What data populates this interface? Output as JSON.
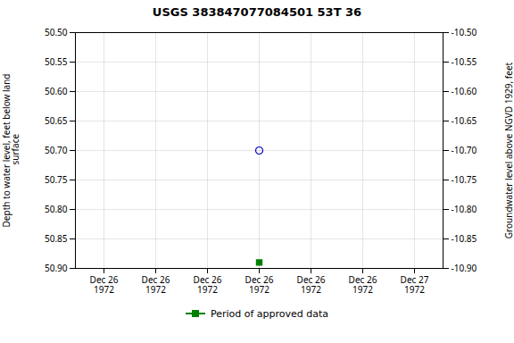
{
  "chart_data": {
    "type": "scatter",
    "title": "USGS 383847077084501 53T 36",
    "y_label": "Depth to water level, feet below land\n surface",
    "y2_label": "Groundwater level above NGVD 1929, feet",
    "categories": [
      "Dec 26\n1972",
      "Dec 26\n1972",
      "Dec 26\n1972",
      "Dec 26\n1972",
      "Dec 26\n1972",
      "Dec 26\n1972",
      "Dec 27\n1972"
    ],
    "series": [
      {
        "color": "#0000cc",
        "marker": "circle_open",
        "values": [
          null,
          null,
          null,
          50.7,
          null,
          null,
          null
        ]
      },
      {
        "name": "Period of approved data",
        "color": "#008000",
        "marker": "square",
        "values": [
          null,
          null,
          null,
          50.89,
          null,
          null,
          null
        ]
      }
    ],
    "ylim": [
      50.9,
      50.5
    ],
    "yticks": [
      {
        "value": 50.5,
        "label": "50.50"
      },
      50.55,
      {
        "value": 50.6,
        "label": "50.60"
      },
      50.65,
      {
        "value": 50.7,
        "label": "50.70"
      },
      50.75,
      {
        "value": 50.8,
        "label": "50.80"
      },
      50.85,
      {
        "value": 50.9,
        "label": "50.90"
      }
    ],
    "y2lim": [
      -10.9,
      -10.5
    ],
    "y2ticks": [
      {
        "value": -10.5,
        "label": "-10.50"
      },
      -10.55,
      {
        "value": -10.6,
        "label": "-10.60"
      },
      -10.65,
      {
        "value": -10.7,
        "label": "-10.70"
      },
      -10.75,
      {
        "value": -10.8,
        "label": "-10.80"
      },
      -10.85,
      {
        "value": -10.9,
        "label": "-10.90"
      }
    ],
    "grid": true,
    "legend": "bottom"
  }
}
